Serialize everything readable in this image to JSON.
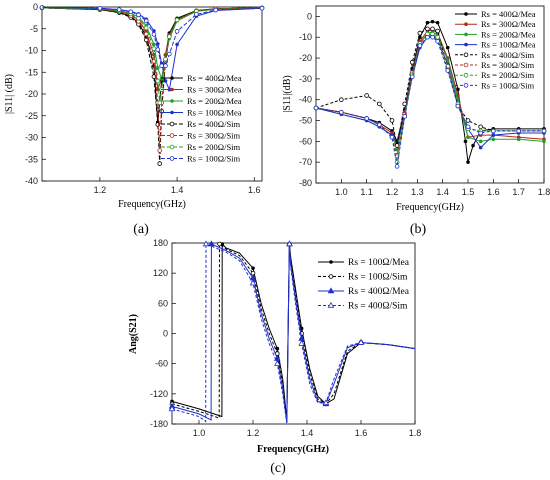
{
  "chart_data": [
    {
      "id": "a",
      "panel_label": "(a)",
      "type": "line",
      "xlabel": "Frequency(GHz)",
      "ylabel": "|S11| (dB)",
      "xlim": [
        1.05,
        1.62
      ],
      "ylim": [
        -40,
        0
      ],
      "xticks": [
        1.2,
        1.4,
        1.6
      ],
      "yticks": [
        0,
        -5,
        -10,
        -15,
        -20,
        -25,
        -30,
        -35,
        -40
      ],
      "legend_position": "right",
      "series": [
        {
          "name": "Rs = 400Ω/Mea",
          "color": "#000000",
          "dash": "",
          "marker": "dot",
          "x": [
            1.05,
            1.2,
            1.25,
            1.28,
            1.3,
            1.32,
            1.34,
            1.35,
            1.36,
            1.37,
            1.38,
            1.4,
            1.45,
            1.5,
            1.62
          ],
          "values": [
            -0.2,
            -0.6,
            -1.2,
            -2.2,
            -3.6,
            -6.8,
            -13.5,
            -26.5,
            -17,
            -11,
            -6,
            -2.6,
            -0.8,
            -0.4,
            -0.2
          ]
        },
        {
          "name": "Rs = 300Ω/Mea",
          "color": "#b4281e",
          "dash": "",
          "marker": "dot",
          "x": [
            1.05,
            1.2,
            1.25,
            1.28,
            1.3,
            1.32,
            1.34,
            1.35,
            1.36,
            1.37,
            1.38,
            1.4,
            1.45,
            1.5,
            1.62
          ],
          "values": [
            -0.2,
            -0.5,
            -1,
            -1.8,
            -3,
            -5.6,
            -11,
            -19,
            -16.5,
            -11,
            -6.4,
            -2.8,
            -0.9,
            -0.4,
            -0.2
          ]
        },
        {
          "name": "Rs = 200Ω/Mea",
          "color": "#22a12a",
          "dash": "",
          "marker": "dot",
          "x": [
            1.05,
            1.2,
            1.25,
            1.28,
            1.3,
            1.32,
            1.34,
            1.35,
            1.36,
            1.37,
            1.38,
            1.4,
            1.45,
            1.5,
            1.62
          ],
          "values": [
            -0.2,
            -0.4,
            -0.8,
            -1.4,
            -2.3,
            -4.3,
            -8.6,
            -14,
            -16.5,
            -12,
            -7.2,
            -3.2,
            -1,
            -0.5,
            -0.2
          ]
        },
        {
          "name": "Rs = 100Ω/Mea",
          "color": "#1f2fd0",
          "dash": "",
          "marker": "dot",
          "x": [
            1.05,
            1.2,
            1.25,
            1.28,
            1.3,
            1.32,
            1.34,
            1.35,
            1.36,
            1.37,
            1.38,
            1.4,
            1.45,
            1.5,
            1.62
          ],
          "values": [
            -0.1,
            -0.3,
            -0.6,
            -1,
            -1.6,
            -2.8,
            -5.5,
            -8.5,
            -13,
            -17,
            -19,
            -8.6,
            -2.1,
            -0.8,
            -0.3
          ]
        },
        {
          "name": "Rs = 400Ω/Sim",
          "color": "#000000",
          "dash": "4 2",
          "marker": "circle",
          "x": [
            1.05,
            1.2,
            1.25,
            1.28,
            1.3,
            1.32,
            1.34,
            1.35,
            1.355,
            1.36,
            1.37,
            1.38,
            1.4,
            1.45,
            1.5,
            1.62
          ],
          "values": [
            -0.2,
            -0.6,
            -1.3,
            -2.4,
            -4,
            -7.6,
            -16,
            -27,
            -36,
            -24,
            -12.5,
            -6.6,
            -2.8,
            -0.9,
            -0.4,
            -0.2
          ]
        },
        {
          "name": "Rs = 300Ω/Sim",
          "color": "#b4281e",
          "dash": "4 2",
          "marker": "circle",
          "x": [
            1.05,
            1.2,
            1.25,
            1.28,
            1.3,
            1.32,
            1.34,
            1.35,
            1.355,
            1.36,
            1.37,
            1.38,
            1.4,
            1.45,
            1.5,
            1.62
          ],
          "values": [
            -0.2,
            -0.5,
            -1.1,
            -2,
            -3.3,
            -6.2,
            -12.5,
            -22,
            -33,
            -22,
            -12,
            -6.6,
            -2.9,
            -0.9,
            -0.4,
            -0.2
          ]
        },
        {
          "name": "Rs = 200Ω/Sim",
          "color": "#22a12a",
          "dash": "4 2",
          "marker": "circle",
          "x": [
            1.05,
            1.2,
            1.25,
            1.28,
            1.3,
            1.32,
            1.34,
            1.35,
            1.355,
            1.36,
            1.37,
            1.38,
            1.4,
            1.45,
            1.5,
            1.62
          ],
          "values": [
            -0.2,
            -0.4,
            -0.9,
            -1.6,
            -2.6,
            -4.8,
            -9.6,
            -17,
            -22,
            -19,
            -12,
            -6.8,
            -3,
            -1,
            -0.5,
            -0.2
          ]
        },
        {
          "name": "Rs = 100Ω/Sim",
          "color": "#1f2fd0",
          "dash": "4 2",
          "marker": "circle",
          "x": [
            1.05,
            1.2,
            1.25,
            1.28,
            1.3,
            1.32,
            1.34,
            1.35,
            1.36,
            1.37,
            1.38,
            1.4,
            1.45,
            1.5,
            1.62
          ],
          "values": [
            -0.1,
            -0.3,
            -0.6,
            -1.1,
            -1.8,
            -3.2,
            -6.3,
            -9.8,
            -13.5,
            -13.5,
            -10.8,
            -5.6,
            -1.7,
            -0.7,
            -0.3
          ]
        }
      ]
    },
    {
      "id": "b",
      "panel_label": "(b)",
      "type": "line",
      "xlabel": "Frequency(GHz)",
      "ylabel": "|S11|(dB)",
      "xlim": [
        0.9,
        1.8
      ],
      "ylim": [
        -80,
        5
      ],
      "xticks": [
        1.0,
        1.1,
        1.2,
        1.3,
        1.4,
        1.5,
        1.6,
        1.7,
        1.8
      ],
      "yticks": [
        0,
        -10,
        -20,
        -30,
        -40,
        -50,
        -60,
        -70,
        -80
      ],
      "legend_position": "top-right",
      "series": [
        {
          "name": "Rs = 400Ω/Mea",
          "color": "#000000",
          "dash": "",
          "marker": "dot",
          "x": [
            0.9,
            1,
            1.1,
            1.15,
            1.2,
            1.22,
            1.25,
            1.28,
            1.31,
            1.34,
            1.36,
            1.38,
            1.42,
            1.46,
            1.49,
            1.5,
            1.52,
            1.55,
            1.6,
            1.7,
            1.8
          ],
          "values": [
            -44,
            -46,
            -49,
            -51,
            -55,
            -60,
            -45,
            -25,
            -10,
            -3,
            -2.5,
            -3,
            -15,
            -35,
            -60,
            -70,
            -62,
            -55,
            -54,
            -54,
            -54
          ]
        },
        {
          "name": "Rs = 300Ω/Mea",
          "color": "#b4281e",
          "dash": "",
          "marker": "dot",
          "x": [
            0.9,
            1,
            1.1,
            1.15,
            1.2,
            1.22,
            1.25,
            1.28,
            1.31,
            1.34,
            1.36,
            1.38,
            1.42,
            1.46,
            1.5,
            1.55,
            1.6,
            1.7,
            1.8
          ],
          "values": [
            -44,
            -46,
            -49,
            -52,
            -56,
            -62,
            -46,
            -27,
            -12,
            -7,
            -6.5,
            -8,
            -20,
            -38,
            -58,
            -57,
            -57,
            -58,
            -59
          ]
        },
        {
          "name": "Rs = 200Ω/Mea",
          "color": "#22a12a",
          "dash": "",
          "marker": "dot",
          "x": [
            0.9,
            1,
            1.1,
            1.15,
            1.2,
            1.22,
            1.25,
            1.28,
            1.31,
            1.34,
            1.36,
            1.38,
            1.42,
            1.46,
            1.5,
            1.55,
            1.6,
            1.7,
            1.8
          ],
          "values": [
            -44,
            -47,
            -50,
            -53,
            -57,
            -64,
            -47,
            -28,
            -13,
            -8,
            -7.5,
            -9,
            -21,
            -40,
            -58,
            -60,
            -59,
            -59,
            -60
          ]
        },
        {
          "name": "Rs = 100Ω/Mea",
          "color": "#1f2fd0",
          "dash": "",
          "marker": "dot",
          "x": [
            0.9,
            1,
            1.1,
            1.15,
            1.2,
            1.22,
            1.25,
            1.28,
            1.31,
            1.34,
            1.36,
            1.38,
            1.42,
            1.46,
            1.5,
            1.55,
            1.6,
            1.7,
            1.8
          ],
          "values": [
            -44,
            -47,
            -50,
            -53,
            -57,
            -61,
            -47,
            -29,
            -15,
            -10,
            -9.5,
            -11,
            -23,
            -42,
            -54,
            -63,
            -57,
            -56,
            -56
          ]
        },
        {
          "name": "Rs = 400Ω/Sim",
          "color": "#000000",
          "dash": "3 2",
          "marker": "circle",
          "x": [
            0.9,
            1,
            1.1,
            1.15,
            1.2,
            1.22,
            1.25,
            1.28,
            1.31,
            1.34,
            1.36,
            1.38,
            1.42,
            1.46,
            1.5,
            1.55,
            1.6,
            1.7,
            1.8
          ],
          "values": [
            -44,
            -40,
            -38,
            -42,
            -50,
            -62,
            -42,
            -22,
            -8,
            -6,
            -6,
            -7,
            -25,
            -43,
            -50,
            -53,
            -55,
            -55,
            -55
          ]
        },
        {
          "name": "Rs = 300Ω/Sim",
          "color": "#b4281e",
          "dash": "3 2",
          "marker": "circle",
          "x": [
            0.9,
            1,
            1.1,
            1.15,
            1.2,
            1.22,
            1.25,
            1.28,
            1.31,
            1.34,
            1.36,
            1.38,
            1.42,
            1.46,
            1.5,
            1.55,
            1.6,
            1.7,
            1.8
          ],
          "values": [
            -44,
            -46,
            -49,
            -52,
            -58,
            -67,
            -47,
            -27,
            -13,
            -9,
            -9,
            -11,
            -25,
            -43,
            -54,
            -55,
            -55,
            -55,
            -55
          ]
        },
        {
          "name": "Rs = 200Ω/Sim",
          "color": "#22a12a",
          "dash": "3 2",
          "marker": "circle",
          "x": [
            0.9,
            1,
            1.1,
            1.15,
            1.2,
            1.22,
            1.25,
            1.28,
            1.31,
            1.34,
            1.36,
            1.38,
            1.42,
            1.46,
            1.5,
            1.55,
            1.6,
            1.7,
            1.8
          ],
          "values": [
            -44,
            -46,
            -49,
            -52,
            -58,
            -70,
            -48,
            -28,
            -13,
            -8.5,
            -8.5,
            -10,
            -24,
            -42,
            -54,
            -55,
            -55,
            -55,
            -55
          ]
        },
        {
          "name": "Rs = 100Ω/Sim",
          "color": "#1f2fd0",
          "dash": "3 2",
          "marker": "circle",
          "x": [
            0.9,
            1,
            1.1,
            1.15,
            1.2,
            1.22,
            1.25,
            1.28,
            1.31,
            1.34,
            1.36,
            1.38,
            1.42,
            1.46,
            1.5,
            1.55,
            1.6,
            1.7,
            1.8
          ],
          "values": [
            -44,
            -46,
            -49,
            -52,
            -58,
            -72,
            -48,
            -29,
            -14,
            -10,
            -10,
            -12,
            -26,
            -43,
            -53,
            -56,
            -55,
            -55,
            -55
          ]
        }
      ]
    },
    {
      "id": "c",
      "panel_label": "(c)",
      "type": "line",
      "xlabel": "Frequency(GHz)",
      "ylabel": "Ang(S21)",
      "xlim": [
        0.9,
        1.8
      ],
      "ylim": [
        -180,
        180
      ],
      "xticks": [
        1.0,
        1.2,
        1.4,
        1.6,
        1.8
      ],
      "yticks": [
        180,
        120,
        60,
        0,
        -60,
        -120,
        -180
      ],
      "legend_position": "top-right",
      "series": [
        {
          "name": "Rs = 100Ω/Mea",
          "color": "#000000",
          "dash": "",
          "marker": "dot",
          "x": [
            0.9,
            1.0,
            1.085,
            1.086,
            1.1,
            1.15,
            1.2,
            1.23,
            1.26,
            1.29,
            1.31,
            1.325,
            1.335,
            1.34,
            1.36,
            1.38,
            1.41,
            1.44,
            1.47,
            1.5,
            1.55,
            1.6,
            1.7,
            1.8
          ],
          "values": [
            -135,
            -150,
            -165,
            178,
            170,
            160,
            130,
            60,
            10,
            -30,
            -90,
            -170,
            178,
            150,
            80,
            10,
            -70,
            -125,
            -140,
            -130,
            -40,
            -18,
            -22,
            -30
          ]
        },
        {
          "name": "Rs = 100Ω/Sim",
          "color": "#000000",
          "dash": "3 2",
          "marker": "circle",
          "x": [
            0.9,
            1.0,
            1.075,
            1.076,
            1.1,
            1.15,
            1.2,
            1.23,
            1.26,
            1.29,
            1.31,
            1.325,
            1.335,
            1.34,
            1.36,
            1.38,
            1.41,
            1.44,
            1.47,
            1.5,
            1.55,
            1.6,
            1.7,
            1.8
          ],
          "values": [
            -140,
            -155,
            -168,
            178,
            168,
            155,
            120,
            50,
            0,
            -40,
            -100,
            -175,
            178,
            145,
            70,
            0,
            -80,
            -130,
            -140,
            -120,
            -35,
            -18,
            -22,
            -30
          ]
        },
        {
          "name": "Rs = 400Ω/Mea",
          "color": "#1f2fd0",
          "dash": "",
          "marker": "triangle",
          "x": [
            0.9,
            1.0,
            1.045,
            1.046,
            1.1,
            1.15,
            1.2,
            1.23,
            1.26,
            1.29,
            1.31,
            1.325,
            1.335,
            1.34,
            1.36,
            1.38,
            1.41,
            1.44,
            1.47,
            1.5,
            1.55,
            1.6,
            1.7,
            1.8
          ],
          "values": [
            -145,
            -160,
            -172,
            178,
            165,
            150,
            110,
            40,
            -10,
            -50,
            -110,
            -178,
            178,
            135,
            60,
            -10,
            -90,
            -135,
            -140,
            -100,
            -28,
            -18,
            -22,
            -30
          ]
        },
        {
          "name": "Rs = 400Ω/Sim",
          "color": "#1f2fd0",
          "dash": "3 2",
          "marker": "triangle",
          "x": [
            0.9,
            1.0,
            1.025,
            1.026,
            1.1,
            1.15,
            1.2,
            1.23,
            1.26,
            1.29,
            1.31,
            1.325,
            1.335,
            1.34,
            1.36,
            1.38,
            1.41,
            1.44,
            1.47,
            1.5,
            1.55,
            1.6,
            1.7,
            1.8
          ],
          "values": [
            -150,
            -165,
            -175,
            178,
            162,
            145,
            100,
            30,
            -20,
            -60,
            -120,
            -178,
            178,
            130,
            50,
            -20,
            -100,
            -138,
            -138,
            -90,
            -25,
            -18,
            -22,
            -30
          ]
        }
      ]
    }
  ]
}
